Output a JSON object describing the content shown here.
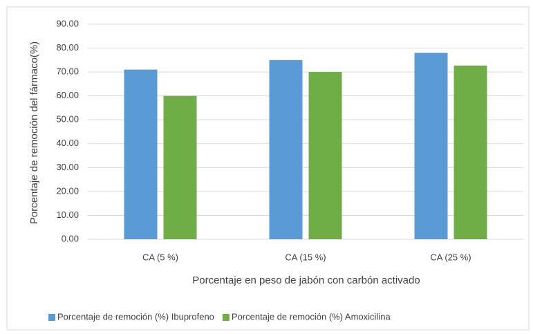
{
  "chart_data": {
    "type": "bar",
    "x_label": "Porcentaje en peso de jabón con carbón activado",
    "y_label": "Porcentaje de remoción del fármaco(%)",
    "categories": [
      "CA (5 %)",
      "CA (15 %)",
      "CA (25 %)"
    ],
    "series": [
      {
        "name": "Porcentaje de remoción (%) Ibuprofeno",
        "color": "#5b9bd5",
        "values": [
          71,
          75,
          78
        ]
      },
      {
        "name": "Porcentaje de remoción (%) Amoxicilina",
        "color": "#70ad47",
        "values": [
          60,
          70,
          72.7
        ]
      }
    ],
    "ylim": [
      0,
      90
    ],
    "yticks": [
      {
        "value": 0,
        "label": "0.00"
      },
      {
        "value": 10,
        "label": "10.00"
      },
      {
        "value": 20,
        "label": "20.00"
      },
      {
        "value": 30,
        "label": "30.00"
      },
      {
        "value": 40,
        "label": "40.00"
      },
      {
        "value": 50,
        "label": "50.00"
      },
      {
        "value": 60,
        "label": "60.00"
      },
      {
        "value": 70,
        "label": "70.00"
      },
      {
        "value": 80,
        "label": "80.00"
      },
      {
        "value": 90,
        "label": "90.00"
      }
    ],
    "grid": true,
    "legend": "bottom"
  }
}
